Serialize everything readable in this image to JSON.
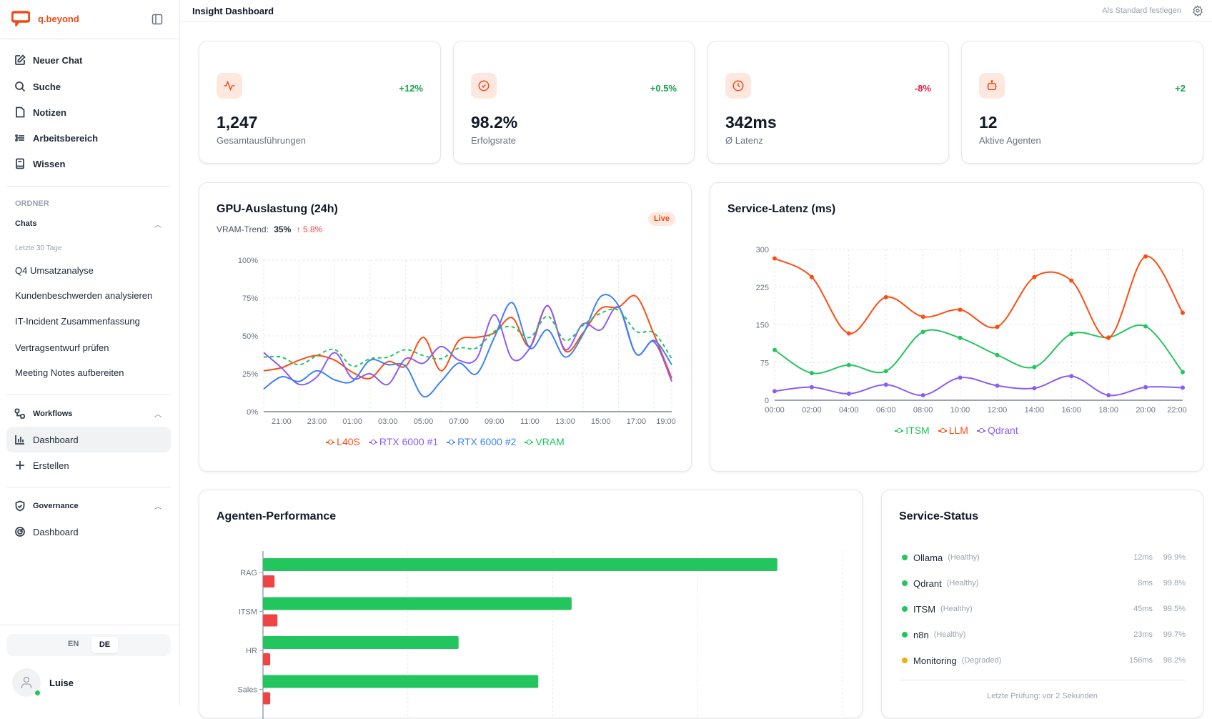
{
  "brand": {
    "name": "q.beyond",
    "color": "#f04b16"
  },
  "sidebar": {
    "nav": [
      {
        "label": "Neuer Chat",
        "icon": "edit-icon"
      },
      {
        "label": "Suche",
        "icon": "search-icon"
      },
      {
        "label": "Notizen",
        "icon": "file-icon"
      },
      {
        "label": "Arbeitsbereich",
        "icon": "list-icon"
      },
      {
        "label": "Wissen",
        "icon": "book-icon"
      }
    ],
    "folders_heading": "ORDNER",
    "chats_label": "Chats",
    "period_label": "Letzte 30 Tage",
    "chats": [
      "Q4 Umsatzanalyse",
      "Kundenbeschwerden analysieren",
      "IT-Incident Zusammenfassung",
      "Vertragsentwurf prüfen",
      "Meeting Notes aufbereiten"
    ],
    "workflows": {
      "label": "Workflows",
      "items": [
        "Dashboard",
        "Erstellen"
      ]
    },
    "governance": {
      "label": "Governance",
      "items": [
        "Dashboard"
      ]
    },
    "languages": [
      "EN",
      "DE"
    ],
    "active_language": "DE",
    "user": {
      "name": "Luise",
      "status": "online"
    }
  },
  "header": {
    "title": "Insight Dashboard",
    "set_default": "Als Standard festlegen"
  },
  "kpis": [
    {
      "value": "1,247",
      "label": "Gesamtausführungen",
      "change": "+12%",
      "trend": "up",
      "icon": "activity-icon"
    },
    {
      "value": "98.2%",
      "label": "Erfolgsrate",
      "change": "+0.5%",
      "trend": "up",
      "icon": "check-circle-icon"
    },
    {
      "value": "342ms",
      "label": "Ø Latenz",
      "change": "-8%",
      "trend": "down",
      "icon": "clock-icon"
    },
    {
      "value": "12",
      "label": "Aktive Agenten",
      "change": "+2",
      "trend": "up",
      "icon": "bot-icon"
    }
  ],
  "colors": {
    "up": "#16a34a",
    "down": "#e11d48",
    "orange": "#ff4b12",
    "purple": "#8b5cf6",
    "blue": "#3b82f6",
    "green": "#22c55e",
    "red": "#ef4444",
    "amber": "#eab308"
  },
  "chart_data": [
    {
      "type": "line",
      "title": "GPU-Auslastung (24h)",
      "subtitle_label": "VRAM-Trend:",
      "subtitle_value": "35%",
      "subtitle_change": "↑ 5.8%",
      "badge": "Live",
      "x": [
        "20:00",
        "21:00",
        "22:00",
        "23:00",
        "00:00",
        "01:00",
        "02:00",
        "03:00",
        "04:00",
        "05:00",
        "06:00",
        "07:00",
        "08:00",
        "09:00",
        "10:00",
        "11:00",
        "12:00",
        "13:00",
        "14:00",
        "15:00",
        "16:00",
        "17:00",
        "18:00",
        "19:00"
      ],
      "xticks": [
        "21:00",
        "23:00",
        "01:00",
        "03:00",
        "05:00",
        "07:00",
        "09:00",
        "11:00",
        "13:00",
        "15:00",
        "17:00",
        "19:00"
      ],
      "yticks": [
        "0%",
        "25%",
        "50%",
        "75%",
        "100%"
      ],
      "ylim": [
        0,
        100
      ],
      "grid": true,
      "legend": "bottom",
      "series": [
        {
          "name": "L40S",
          "color": "#ff4b12",
          "values": [
            27,
            29,
            34,
            37,
            34,
            26,
            22,
            33,
            30,
            49,
            27,
            47,
            49,
            52,
            62,
            43,
            70,
            40,
            52,
            68,
            69,
            76,
            51,
            22
          ]
        },
        {
          "name": "RTX 6000 #1",
          "color": "#8b5cf6",
          "values": [
            39,
            29,
            18,
            23,
            39,
            22,
            25,
            18,
            35,
            32,
            43,
            34,
            35,
            64,
            35,
            42,
            70,
            41,
            58,
            54,
            69,
            38,
            46,
            20
          ]
        },
        {
          "name": "RTX 6000 #2",
          "color": "#3b82f6",
          "values": [
            15,
            23,
            20,
            27,
            21,
            20,
            34,
            31,
            30,
            10,
            20,
            32,
            25,
            49,
            72,
            42,
            54,
            36,
            51,
            76,
            70,
            38,
            47,
            31
          ]
        },
        {
          "name": "VRAM",
          "color": "#22c55e",
          "dashed": true,
          "values": [
            36,
            36,
            31,
            37,
            41,
            30,
            35,
            36,
            41,
            37,
            35,
            42,
            42,
            53,
            56,
            49,
            63,
            47,
            57,
            65,
            67,
            53,
            52,
            35
          ]
        }
      ]
    },
    {
      "type": "line",
      "title": "Service-Latenz (ms)",
      "x": [
        "00:00",
        "02:00",
        "04:00",
        "06:00",
        "08:00",
        "10:00",
        "12:00",
        "14:00",
        "16:00",
        "18:00",
        "20:00",
        "22:00"
      ],
      "yticks": [
        "0",
        "75",
        "150",
        "225",
        "300"
      ],
      "ylim": [
        0,
        300
      ],
      "grid": true,
      "legend": "bottom",
      "series": [
        {
          "name": "ITSM",
          "color": "#22c55e",
          "values": [
            100,
            54,
            70,
            58,
            136,
            124,
            90,
            66,
            132,
            125,
            147,
            56
          ]
        },
        {
          "name": "LLM",
          "color": "#ff4b12",
          "values": [
            282,
            245,
            133,
            205,
            166,
            180,
            146,
            245,
            238,
            124,
            286,
            174
          ]
        },
        {
          "name": "Qdrant",
          "color": "#8b5cf6",
          "values": [
            18,
            26,
            13,
            31,
            10,
            45,
            29,
            24,
            48,
            10,
            26,
            25
          ]
        }
      ]
    },
    {
      "type": "bar",
      "orientation": "horizontal",
      "title": "Agenten-Performance",
      "categories": [
        "RAG",
        "ITSM",
        "HR",
        "Sales"
      ],
      "xlim": [
        0,
        400
      ],
      "grid": true,
      "series": [
        {
          "name": "success",
          "color": "#22c55e",
          "values": [
            355,
            213,
            135,
            190
          ]
        },
        {
          "name": "error",
          "color": "#ef4444",
          "values": [
            8,
            10,
            5,
            5
          ]
        }
      ]
    }
  ],
  "service_status": {
    "title": "Service-Status",
    "services": [
      {
        "name": "Ollama",
        "status": "(Healthy)",
        "latency": "12ms",
        "uptime": "99.9%",
        "color": "#22c55e"
      },
      {
        "name": "Qdrant",
        "status": "(Healthy)",
        "latency": "8ms",
        "uptime": "99.8%",
        "color": "#22c55e"
      },
      {
        "name": "ITSM",
        "status": "(Healthy)",
        "latency": "45ms",
        "uptime": "99.5%",
        "color": "#22c55e"
      },
      {
        "name": "n8n",
        "status": "(Healthy)",
        "latency": "23ms",
        "uptime": "99.7%",
        "color": "#22c55e"
      },
      {
        "name": "Monitoring",
        "status": "(Degraded)",
        "latency": "156ms",
        "uptime": "98.2%",
        "color": "#eab308"
      }
    ],
    "footer": "Letzte Prüfung: vor 2 Sekunden"
  }
}
